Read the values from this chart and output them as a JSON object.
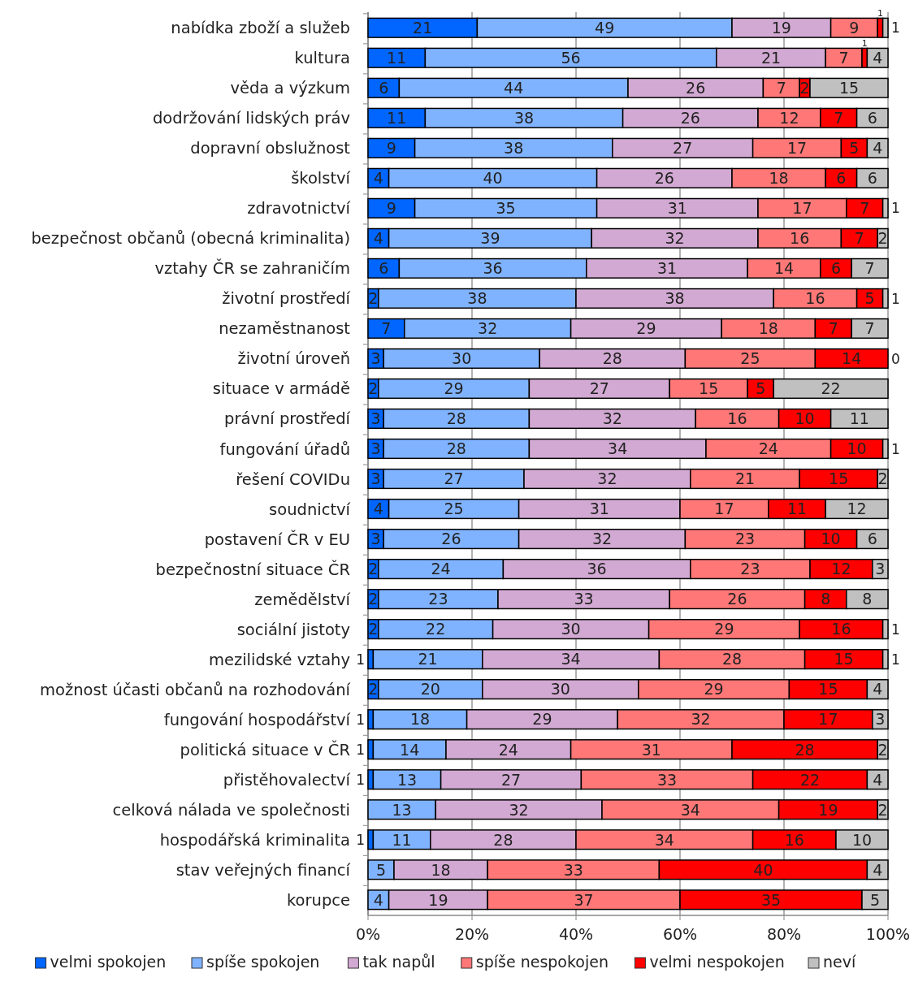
{
  "chart_data": {
    "type": "bar",
    "orientation": "horizontal",
    "stacked": true,
    "data_labels": true,
    "grid": "x",
    "legend": "bottom",
    "categories": [
      "nabídka zboží a služeb",
      "kultura",
      "věda a výzkum",
      "dodržování lidských práv",
      "dopravní obslužnost",
      "školství",
      "zdravotnictví",
      "bezpečnost občanů (obecná kriminalita)",
      "vztahy ČR se zahraničím",
      "životní prostředí",
      "nezaměstnanost",
      "životní úroveň",
      "situace v armádě",
      "právní prostředí",
      "fungování úřadů",
      "řešení COVIDu",
      "soudnictví",
      "postavení ČR v EU",
      "bezpečnostní situace ČR",
      "zemědělství",
      "sociální jistoty",
      "mezilidské vztahy",
      "možnost účasti občanů na rozhodování",
      "fungování hospodářství",
      "politická situace v ČR",
      "přistěhovalectví",
      "celková nálada ve společnosti",
      "hospodářská kriminalita",
      "stav veřejných financí",
      "korupce"
    ],
    "xlim": [
      0,
      100
    ],
    "xticks": [
      {
        "value": 0,
        "label": "0%"
      },
      {
        "value": 20,
        "label": "20%"
      },
      {
        "value": 40,
        "label": "40%"
      },
      {
        "value": 60,
        "label": "60%"
      },
      {
        "value": 80,
        "label": "80%"
      },
      {
        "value": 100,
        "label": "100%"
      }
    ],
    "series": [
      {
        "name": "velmi spokojen",
        "color": "#0066ff",
        "values": [
          21,
          11,
          6,
          11,
          9,
          4,
          9,
          4,
          6,
          2,
          7,
          3,
          2,
          3,
          3,
          3,
          4,
          3,
          2,
          2,
          2,
          1,
          2,
          1,
          1,
          1,
          null,
          1,
          null,
          null
        ]
      },
      {
        "name": "spíše spokojen",
        "color": "#80b3ff",
        "values": [
          49,
          56,
          44,
          38,
          38,
          40,
          35,
          39,
          36,
          38,
          32,
          30,
          29,
          28,
          28,
          27,
          25,
          26,
          24,
          23,
          22,
          21,
          20,
          18,
          14,
          13,
          13,
          11,
          5,
          4
        ]
      },
      {
        "name": "tak napůl",
        "color": "#d2a9d2",
        "values": [
          19,
          21,
          26,
          26,
          27,
          26,
          31,
          32,
          31,
          38,
          29,
          28,
          27,
          32,
          34,
          32,
          31,
          32,
          36,
          33,
          30,
          34,
          30,
          29,
          24,
          27,
          32,
          28,
          18,
          19
        ]
      },
      {
        "name": "spíše nespokojen",
        "color": "#ff7777",
        "values": [
          9,
          7,
          7,
          12,
          17,
          18,
          17,
          16,
          14,
          16,
          18,
          25,
          15,
          16,
          24,
          21,
          17,
          23,
          23,
          26,
          29,
          28,
          29,
          32,
          31,
          33,
          34,
          34,
          33,
          37
        ]
      },
      {
        "name": "velmi nespokojen",
        "color": "#ff0000",
        "values": [
          1,
          1,
          2,
          7,
          5,
          6,
          7,
          7,
          6,
          5,
          7,
          14,
          5,
          10,
          10,
          15,
          11,
          10,
          12,
          8,
          16,
          15,
          15,
          17,
          28,
          22,
          19,
          16,
          40,
          35
        ]
      },
      {
        "name": "neví",
        "color": "#c0c0c0",
        "values": [
          1,
          4,
          15,
          6,
          4,
          6,
          1,
          2,
          7,
          1,
          7,
          0,
          22,
          11,
          1,
          2,
          12,
          6,
          3,
          8,
          1,
          1,
          4,
          3,
          2,
          4,
          2,
          10,
          4,
          5
        ]
      }
    ]
  }
}
